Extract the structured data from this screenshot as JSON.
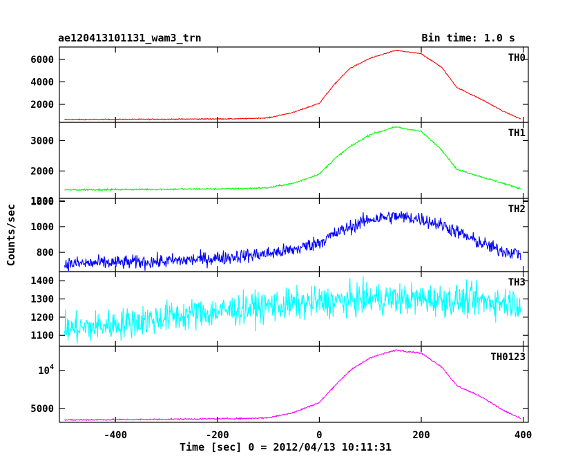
{
  "title_left": "ae120413101131_wam3_trn",
  "title_right": "Bin time: 1.0 s",
  "chart_data": {
    "type": "line",
    "xlabel": "Time [sec] 0 = 2012/04/13 10:11:31",
    "ylabel": "Counts/sec",
    "xlim": [
      -510,
      410
    ],
    "xticks": [
      -400,
      -200,
      0,
      200,
      400
    ],
    "grid": false,
    "panels": [
      {
        "name": "TH0",
        "color": "#ff0000",
        "ylim": [
          400,
          7100
        ],
        "yticks": [
          {
            "v": 2000,
            "label": "2000"
          },
          {
            "v": 4000,
            "label": "4000"
          },
          {
            "v": 6000,
            "label": "6000"
          }
        ],
        "noise": 40,
        "curve": [
          [
            -500,
            650
          ],
          [
            -300,
            680
          ],
          [
            -150,
            720
          ],
          [
            -100,
            800
          ],
          [
            -50,
            1300
          ],
          [
            0,
            2100
          ],
          [
            30,
            3800
          ],
          [
            60,
            5200
          ],
          [
            100,
            6100
          ],
          [
            150,
            6800
          ],
          [
            200,
            6500
          ],
          [
            240,
            5300
          ],
          [
            270,
            3500
          ],
          [
            320,
            2400
          ],
          [
            360,
            1400
          ],
          [
            395,
            700
          ]
        ]
      },
      {
        "name": "TH1",
        "color": "#00ff00",
        "ylim": [
          1100,
          3600
        ],
        "yticks": [
          {
            "v": 1000,
            "label": "1000"
          },
          {
            "v": 2000,
            "label": "2000"
          },
          {
            "v": 3000,
            "label": "3000"
          }
        ],
        "noise": 25,
        "curve": [
          [
            -500,
            1380
          ],
          [
            -300,
            1400
          ],
          [
            -150,
            1420
          ],
          [
            -100,
            1450
          ],
          [
            -50,
            1600
          ],
          [
            0,
            1900
          ],
          [
            30,
            2400
          ],
          [
            60,
            2800
          ],
          [
            100,
            3200
          ],
          [
            150,
            3450
          ],
          [
            200,
            3300
          ],
          [
            240,
            2700
          ],
          [
            270,
            2050
          ],
          [
            320,
            1800
          ],
          [
            360,
            1600
          ],
          [
            395,
            1420
          ]
        ]
      },
      {
        "name": "TH2",
        "color": "#0000ff",
        "ylim": [
          650,
          1220
        ],
        "yticks": [
          {
            "v": 800,
            "label": "800"
          },
          {
            "v": 1000,
            "label": "1000"
          },
          {
            "v": 1200,
            "label": "1200"
          }
        ],
        "noise": 35,
        "curve": [
          [
            -500,
            710
          ],
          [
            -300,
            730
          ],
          [
            -200,
            755
          ],
          [
            -100,
            790
          ],
          [
            -50,
            820
          ],
          [
            0,
            880
          ],
          [
            50,
            980
          ],
          [
            100,
            1060
          ],
          [
            150,
            1080
          ],
          [
            200,
            1060
          ],
          [
            250,
            1000
          ],
          [
            300,
            900
          ],
          [
            350,
            820
          ],
          [
            395,
            790
          ]
        ]
      },
      {
        "name": "TH3",
        "color": "#00ffff",
        "ylim": [
          1040,
          1450
        ],
        "yticks": [
          {
            "v": 1100,
            "label": "1100"
          },
          {
            "v": 1200,
            "label": "1200"
          },
          {
            "v": 1300,
            "label": "1300"
          },
          {
            "v": 1400,
            "label": "1400"
          }
        ],
        "noise": 55,
        "curve": [
          [
            -500,
            1130
          ],
          [
            -400,
            1160
          ],
          [
            -300,
            1200
          ],
          [
            -200,
            1230
          ],
          [
            -100,
            1260
          ],
          [
            0,
            1280
          ],
          [
            100,
            1300
          ],
          [
            200,
            1300
          ],
          [
            300,
            1290
          ],
          [
            395,
            1280
          ]
        ]
      },
      {
        "name": "TH0123",
        "color": "#ff00ff",
        "ylim": [
          3200,
          13200
        ],
        "yticks": [
          {
            "v": 5000,
            "label": "5000"
          },
          {
            "v": 10000,
            "label": "10^4"
          }
        ],
        "noise": 60,
        "curve": [
          [
            -500,
            3500
          ],
          [
            -300,
            3600
          ],
          [
            -150,
            3700
          ],
          [
            -100,
            3800
          ],
          [
            -50,
            4500
          ],
          [
            0,
            5800
          ],
          [
            30,
            8000
          ],
          [
            60,
            10000
          ],
          [
            100,
            11700
          ],
          [
            150,
            12700
          ],
          [
            200,
            12300
          ],
          [
            240,
            10500
          ],
          [
            270,
            8000
          ],
          [
            320,
            6500
          ],
          [
            360,
            4800
          ],
          [
            395,
            3700
          ]
        ]
      }
    ]
  }
}
